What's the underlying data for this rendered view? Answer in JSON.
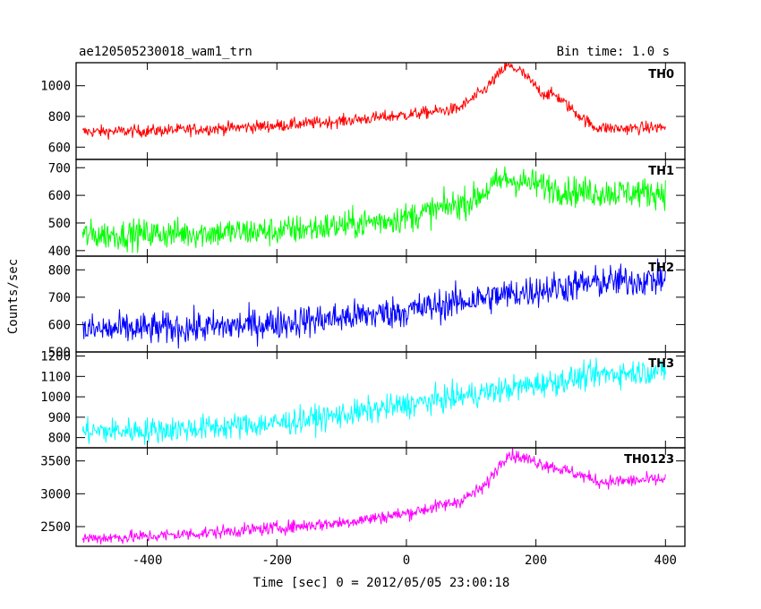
{
  "header": {
    "title": "ae120505230018_wam1_trn",
    "bin_time": "Bin time: 1.0 s"
  },
  "chart_data": {
    "type": "line",
    "ylabel": "Counts/sec",
    "xlabel": "Time [sec] 0 = 2012/05/05 23:00:18",
    "xlim": [
      -510,
      430
    ],
    "x_ticks": [
      -400,
      -200,
      0,
      200,
      400
    ],
    "x_range_data": [
      -500,
      400
    ],
    "panels": [
      {
        "name": "TH0",
        "color": "#ff0000",
        "ylim": [
          520,
          1150
        ],
        "y_ticks": [
          600,
          800,
          1000
        ],
        "noise": 28,
        "profile": [
          [
            -500,
            700
          ],
          [
            -400,
            705
          ],
          [
            -300,
            720
          ],
          [
            -200,
            740
          ],
          [
            -100,
            770
          ],
          [
            0,
            810
          ],
          [
            80,
            850
          ],
          [
            120,
            970
          ],
          [
            155,
            1130
          ],
          [
            175,
            1100
          ],
          [
            210,
            950
          ],
          [
            230,
            940
          ],
          [
            260,
            830
          ],
          [
            290,
            730
          ],
          [
            330,
            720
          ],
          [
            400,
            730
          ]
        ]
      },
      {
        "name": "TH1",
        "color": "#00ff00",
        "ylim": [
          380,
          730
        ],
        "y_ticks": [
          400,
          500,
          600,
          700
        ],
        "noise": 38,
        "profile": [
          [
            -500,
            455
          ],
          [
            -400,
            460
          ],
          [
            -300,
            465
          ],
          [
            -200,
            470
          ],
          [
            -100,
            490
          ],
          [
            0,
            520
          ],
          [
            100,
            580
          ],
          [
            150,
            660
          ],
          [
            200,
            640
          ],
          [
            250,
            615
          ],
          [
            300,
            610
          ],
          [
            400,
            610
          ]
        ]
      },
      {
        "name": "TH2",
        "color": "#0000ff",
        "ylim": [
          500,
          850
        ],
        "y_ticks": [
          500,
          600,
          700,
          800
        ],
        "noise": 42,
        "profile": [
          [
            -500,
            580
          ],
          [
            -400,
            585
          ],
          [
            -300,
            590
          ],
          [
            -200,
            605
          ],
          [
            -100,
            625
          ],
          [
            0,
            650
          ],
          [
            100,
            690
          ],
          [
            200,
            725
          ],
          [
            300,
            755
          ],
          [
            400,
            765
          ]
        ]
      },
      {
        "name": "TH3",
        "color": "#00ffff",
        "ylim": [
          750,
          1220
        ],
        "y_ticks": [
          800,
          900,
          1000,
          1100,
          1200
        ],
        "noise": 45,
        "profile": [
          [
            -500,
            830
          ],
          [
            -400,
            835
          ],
          [
            -300,
            850
          ],
          [
            -200,
            870
          ],
          [
            -100,
            910
          ],
          [
            0,
            960
          ],
          [
            100,
            1010
          ],
          [
            200,
            1060
          ],
          [
            300,
            1110
          ],
          [
            400,
            1130
          ]
        ]
      },
      {
        "name": "TH0123",
        "color": "#ff00ff",
        "ylim": [
          2200,
          3700
        ],
        "y_ticks": [
          2500,
          3000,
          3500
        ],
        "noise": 70,
        "profile": [
          [
            -500,
            2320
          ],
          [
            -400,
            2350
          ],
          [
            -300,
            2410
          ],
          [
            -200,
            2480
          ],
          [
            -100,
            2560
          ],
          [
            0,
            2700
          ],
          [
            80,
            2880
          ],
          [
            120,
            3100
          ],
          [
            155,
            3600
          ],
          [
            175,
            3560
          ],
          [
            230,
            3400
          ],
          [
            270,
            3280
          ],
          [
            300,
            3180
          ],
          [
            350,
            3200
          ],
          [
            400,
            3220
          ]
        ]
      }
    ]
  }
}
